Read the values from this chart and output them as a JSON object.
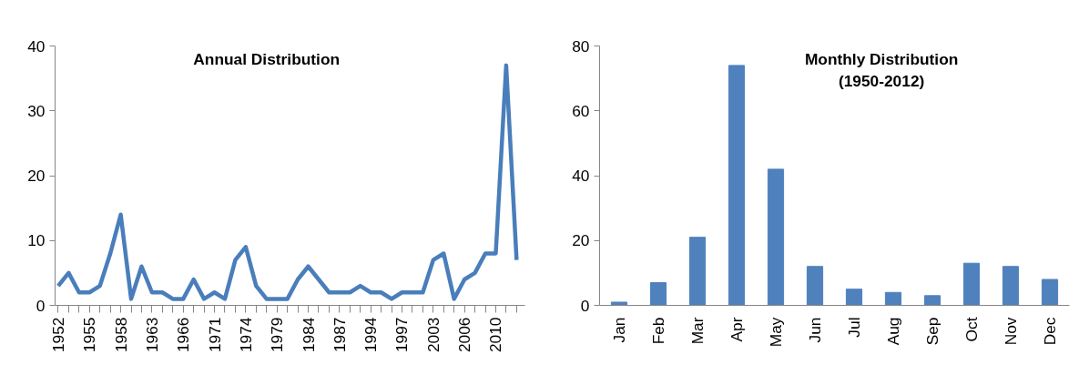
{
  "chart_data": [
    {
      "type": "line",
      "title": "Annual Distribution",
      "categories": [
        "1952",
        null,
        null,
        "1955",
        null,
        null,
        "1958",
        null,
        null,
        "1963",
        null,
        null,
        "1966",
        null,
        null,
        "1971",
        null,
        null,
        "1974",
        null,
        null,
        "1979",
        null,
        null,
        "1984",
        null,
        null,
        "1987",
        null,
        null,
        "1994",
        null,
        null,
        "1997",
        null,
        null,
        "2003",
        null,
        null,
        "2006",
        null,
        null,
        "2010",
        null,
        null
      ],
      "series": [
        {
          "color": "#4a7ebb",
          "values": [
            3,
            5,
            2,
            2,
            3,
            8,
            14,
            1,
            6,
            2,
            2,
            1,
            1,
            4,
            1,
            2,
            1,
            7,
            9,
            3,
            1,
            1,
            1,
            4,
            6,
            4,
            2,
            2,
            2,
            3,
            2,
            2,
            1,
            2,
            2,
            2,
            7,
            8,
            1,
            4,
            5,
            8,
            8,
            37,
            7
          ]
        }
      ],
      "ylim": [
        0,
        40
      ],
      "yticks": [
        0,
        10,
        20,
        30,
        40
      ],
      "grid": false,
      "marker": "none",
      "line_style": "solid"
    },
    {
      "type": "bar",
      "title": "Monthly Distribution (1950-2012)",
      "categories": [
        "Jan",
        "Feb",
        "Mar",
        "Apr",
        "May",
        "Jun",
        "Jul",
        "Aug",
        "Sep",
        "Oct",
        "Nov",
        "Dec"
      ],
      "series": [
        {
          "color": "#4f81bd",
          "values": [
            1,
            7,
            21,
            74,
            42,
            12,
            5,
            4,
            3,
            13,
            12,
            8
          ]
        }
      ],
      "ylim": [
        0,
        80
      ],
      "yticks": [
        0,
        20,
        40,
        60,
        80
      ],
      "grid": false
    }
  ]
}
